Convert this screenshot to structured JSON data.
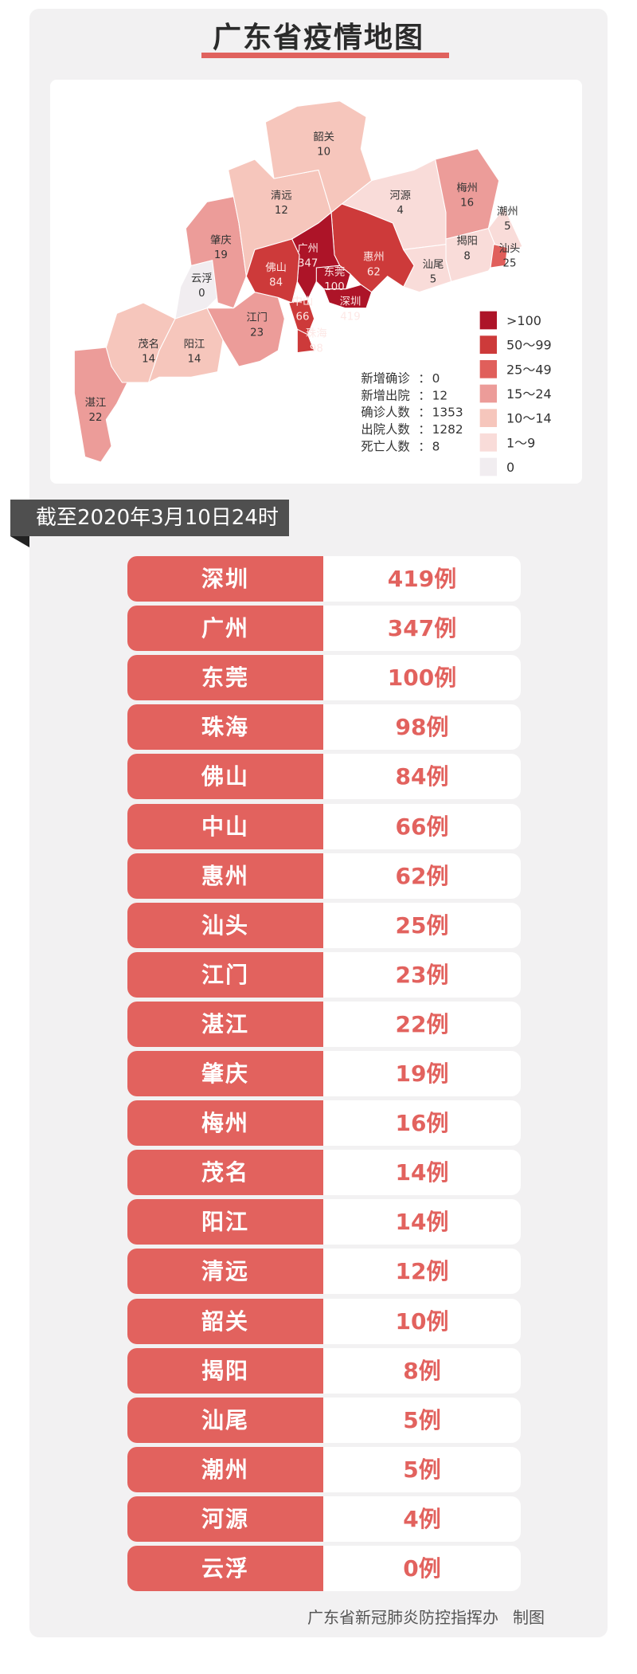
{
  "title": "广东省疫情地图",
  "map": {
    "regions": [
      {
        "name": "湛江",
        "value": "22",
        "bucket": 3
      },
      {
        "name": "茂名",
        "value": "14",
        "bucket": 4
      },
      {
        "name": "阳江",
        "value": "14",
        "bucket": 4
      },
      {
        "name": "云浮",
        "value": "0",
        "bucket": 6
      },
      {
        "name": "肇庆",
        "value": "19",
        "bucket": 3
      },
      {
        "name": "江门",
        "value": "23",
        "bucket": 3
      },
      {
        "name": "清远",
        "value": "12",
        "bucket": 4
      },
      {
        "name": "韶关",
        "value": "10",
        "bucket": 4
      },
      {
        "name": "河源",
        "value": "4",
        "bucket": 5
      },
      {
        "name": "梅州",
        "value": "16",
        "bucket": 3
      },
      {
        "name": "潮州",
        "value": "5",
        "bucket": 5
      },
      {
        "name": "揭阳",
        "value": "8",
        "bucket": 5
      },
      {
        "name": "汕头",
        "value": "25",
        "bucket": 2
      },
      {
        "name": "汕尾",
        "value": "5",
        "bucket": 5
      },
      {
        "name": "惠州",
        "value": "62",
        "bucket": 1
      },
      {
        "name": "广州",
        "value": "347",
        "bucket": 0
      },
      {
        "name": "东莞",
        "value": "100",
        "bucket": 0
      },
      {
        "name": "深圳",
        "value": "419",
        "bucket": 0
      },
      {
        "name": "佛山",
        "value": "84",
        "bucket": 1
      },
      {
        "name": "中山",
        "value": "66",
        "bucket": 1
      },
      {
        "name": "珠海",
        "value": "98",
        "bucket": 1
      }
    ],
    "legend": [
      {
        "label": ">100",
        "color": "#ad1428"
      },
      {
        "label": "50～99",
        "color": "#cd3a3a"
      },
      {
        "label": "25～49",
        "color": "#e05f5b"
      },
      {
        "label": "15～24",
        "color": "#ec9c99"
      },
      {
        "label": "10～14",
        "color": "#f6c6bc"
      },
      {
        "label": "1～9",
        "color": "#f9dcd9"
      },
      {
        "label": "0",
        "color": "#f1edf0"
      }
    ],
    "stats": [
      {
        "label": "新增确诊",
        "value": "0"
      },
      {
        "label": "新增出院",
        "value": "12"
      },
      {
        "label": "确诊人数",
        "value": "1353"
      },
      {
        "label": "出院人数",
        "value": "1282"
      },
      {
        "label": "死亡人数",
        "value": "8"
      }
    ]
  },
  "banner": "截至2020年3月10日24时",
  "rows": [
    {
      "city": "深圳",
      "count": "419例"
    },
    {
      "city": "广州",
      "count": "347例"
    },
    {
      "city": "东莞",
      "count": "100例"
    },
    {
      "city": "珠海",
      "count": "98例"
    },
    {
      "city": "佛山",
      "count": "84例"
    },
    {
      "city": "中山",
      "count": "66例"
    },
    {
      "city": "惠州",
      "count": "62例"
    },
    {
      "city": "汕头",
      "count": "25例"
    },
    {
      "city": "江门",
      "count": "23例"
    },
    {
      "city": "湛江",
      "count": "22例"
    },
    {
      "city": "肇庆",
      "count": "19例"
    },
    {
      "city": "梅州",
      "count": "16例"
    },
    {
      "city": "茂名",
      "count": "14例"
    },
    {
      "city": "阳江",
      "count": "14例"
    },
    {
      "city": "清远",
      "count": "12例"
    },
    {
      "city": "韶关",
      "count": "10例"
    },
    {
      "city": "揭阳",
      "count": "8例"
    },
    {
      "city": "汕尾",
      "count": "5例"
    },
    {
      "city": "潮州",
      "count": "5例"
    },
    {
      "city": "河源",
      "count": "4例"
    },
    {
      "city": "云浮",
      "count": "0例"
    }
  ],
  "footer": {
    "org": "广东省新冠肺炎防控指挥办",
    "suffix": "制图"
  },
  "colors": {
    "accent": "#e2625e",
    "banner": "#4f4f4f",
    "card": "#f2f1f2"
  }
}
